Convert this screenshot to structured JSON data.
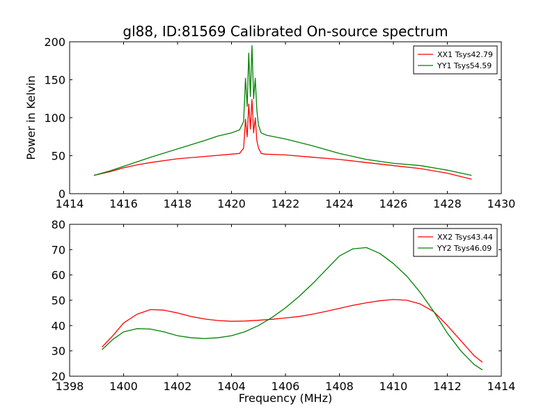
{
  "colors": {
    "xx": "#ff0000",
    "yy": "#008000"
  },
  "chart_data": [
    {
      "type": "line",
      "title": "gl88, ID:81569 Calibrated On-source spectrum",
      "xlabel": "",
      "ylabel": "Power in Kelvin",
      "xlim": [
        1414,
        1430
      ],
      "ylim": [
        0,
        200
      ],
      "xticks": [
        1414,
        1416,
        1418,
        1420,
        1422,
        1424,
        1426,
        1428,
        1430
      ],
      "yticks": [
        0,
        50,
        100,
        150,
        200
      ],
      "legend_position": "top-right",
      "series": [
        {
          "name": "XX1 Tsys42.79",
          "color_key": "xx",
          "x": [
            1414.9,
            1415.5,
            1416,
            1416.5,
            1417,
            1418,
            1419,
            1420,
            1420.3,
            1420.45,
            1420.52,
            1420.58,
            1420.64,
            1420.7,
            1420.76,
            1420.82,
            1420.88,
            1420.94,
            1421.0,
            1421.1,
            1421.25,
            1422,
            1423,
            1424,
            1425,
            1426,
            1427,
            1428,
            1428.9
          ],
          "y": [
            24,
            29,
            34,
            38,
            41,
            46,
            49,
            52,
            53,
            60,
            98,
            75,
            118,
            85,
            124,
            80,
            100,
            70,
            60,
            53,
            52,
            51,
            48,
            45,
            41,
            37,
            33,
            27,
            19
          ]
        },
        {
          "name": "YY1 Tsys54.59",
          "color_key": "yy",
          "x": [
            1414.9,
            1415.5,
            1416,
            1417,
            1418,
            1419,
            1419.5,
            1420,
            1420.3,
            1420.45,
            1420.52,
            1420.58,
            1420.64,
            1420.7,
            1420.76,
            1420.82,
            1420.88,
            1420.94,
            1421.0,
            1421.1,
            1421.3,
            1422,
            1423,
            1424,
            1425,
            1426,
            1427,
            1428,
            1428.9
          ],
          "y": [
            24,
            30,
            36,
            48,
            59,
            70,
            76,
            80,
            84,
            95,
            152,
            115,
            185,
            128,
            195,
            125,
            152,
            110,
            90,
            80,
            77,
            72,
            63,
            53,
            45,
            40,
            37,
            31,
            24
          ]
        }
      ]
    },
    {
      "type": "line",
      "title": "",
      "xlabel": "Frequency (MHz)",
      "ylabel": "",
      "xlim": [
        1398,
        1414
      ],
      "ylim": [
        20,
        80
      ],
      "xticks": [
        1398,
        1400,
        1402,
        1404,
        1406,
        1408,
        1410,
        1412,
        1414
      ],
      "yticks": [
        20,
        30,
        40,
        50,
        60,
        70,
        80
      ],
      "legend_position": "top-right",
      "series": [
        {
          "name": "XX2 Tsys43.44",
          "color_key": "xx",
          "x": [
            1399.2,
            1399.6,
            1400,
            1400.5,
            1401,
            1401.5,
            1402,
            1402.5,
            1403,
            1403.5,
            1404,
            1404.5,
            1405,
            1405.5,
            1406,
            1406.5,
            1407,
            1407.5,
            1408,
            1408.5,
            1409,
            1409.5,
            1410,
            1410.5,
            1411,
            1411.5,
            1412,
            1412.5,
            1413,
            1413.3
          ],
          "y": [
            31.5,
            36,
            41,
            44.5,
            46.3,
            46.1,
            45,
            43.6,
            42.6,
            42,
            41.7,
            41.8,
            42.1,
            42.5,
            43,
            43.6,
            44.5,
            45.6,
            46.8,
            48,
            49,
            49.8,
            50.3,
            50,
            48.5,
            45.5,
            40,
            34,
            28,
            25.5
          ]
        },
        {
          "name": "YY2 Tsys46.09",
          "color_key": "yy",
          "x": [
            1399.2,
            1399.6,
            1400,
            1400.5,
            1401,
            1401.5,
            1402,
            1402.5,
            1403,
            1403.5,
            1404,
            1404.5,
            1405,
            1405.5,
            1406,
            1406.5,
            1407,
            1407.5,
            1408,
            1408.5,
            1409,
            1409.5,
            1410,
            1410.5,
            1411,
            1411.5,
            1412,
            1412.5,
            1413,
            1413.3
          ],
          "y": [
            30.5,
            34.5,
            37.5,
            38.8,
            38.6,
            37.5,
            36,
            35.2,
            34.9,
            35.2,
            36,
            37.6,
            40,
            43.2,
            47,
            51.5,
            56.5,
            62,
            67.5,
            70.3,
            70.8,
            68.5,
            64.5,
            59.5,
            53,
            45.5,
            37,
            30,
            24.5,
            22.5
          ]
        }
      ]
    }
  ]
}
